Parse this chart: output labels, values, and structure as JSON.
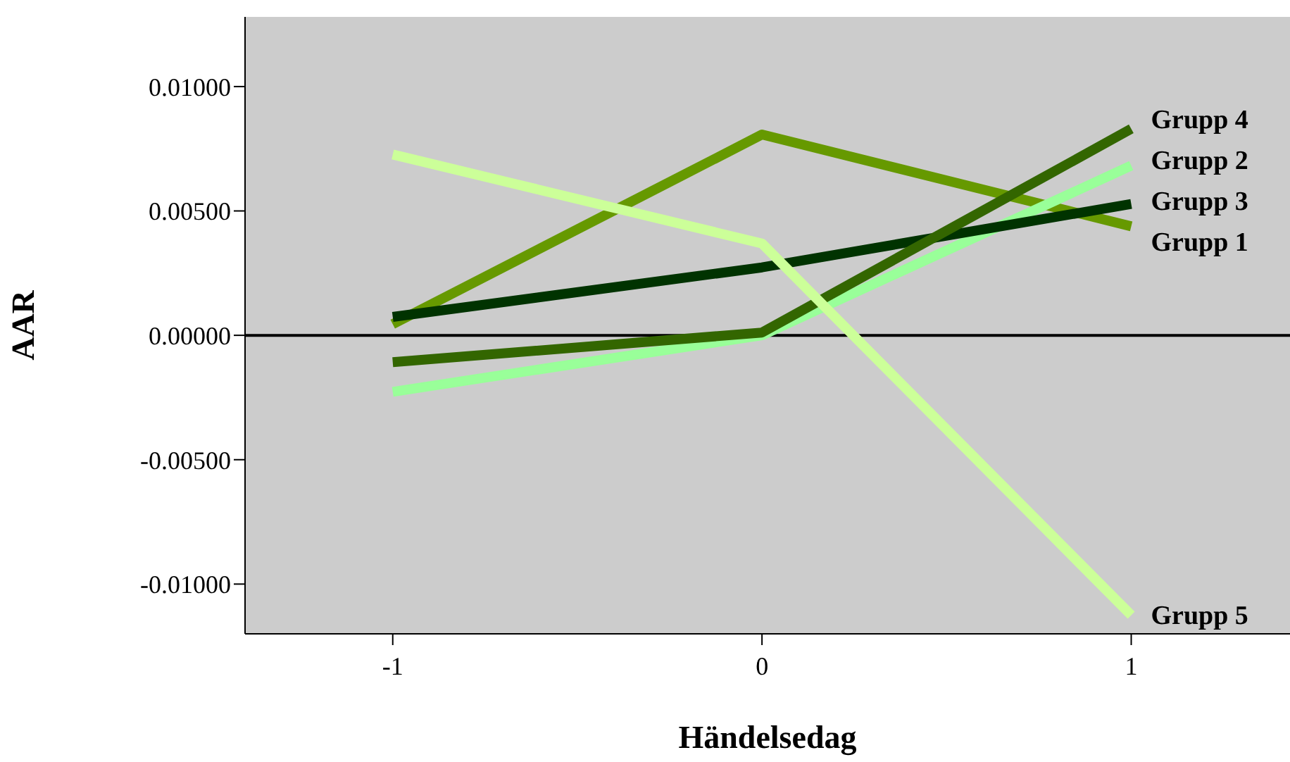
{
  "chart_data": {
    "type": "line",
    "xlabel": "Händelsedag",
    "ylabel": "AAR",
    "x": [
      -1,
      0,
      1
    ],
    "series": [
      {
        "name": "Grupp 1",
        "color": "#669900",
        "values": [
          0.00045,
          0.00807,
          0.00438
        ]
      },
      {
        "name": "Grupp 2",
        "color": "#99ff99",
        "values": [
          -0.00227,
          0.0,
          0.00682
        ]
      },
      {
        "name": "Grupp 3",
        "color": "#003300",
        "values": [
          0.00074,
          0.00273,
          0.00528
        ]
      },
      {
        "name": "Grupp 4",
        "color": "#336600",
        "values": [
          -0.00108,
          0.00011,
          0.0083
        ]
      },
      {
        "name": "Grupp 5",
        "color": "#ccff99",
        "values": [
          0.00727,
          0.00369,
          -0.01125
        ]
      }
    ],
    "xlim": [
      -1.4,
      1.43
    ],
    "xticks": [
      -1,
      0,
      1
    ],
    "ylim": [
      -0.012,
      0.0128
    ],
    "yticks": [
      {
        "value": -0.01,
        "label": "-0.01000"
      },
      {
        "value": -0.005,
        "label": "-0.00500"
      },
      {
        "value": 0,
        "label": "0.00000"
      },
      {
        "value": 0.005,
        "label": "0.00500"
      },
      {
        "value": 0.01,
        "label": "0.01000"
      }
    ],
    "ref_lines": [
      {
        "axis": "y",
        "value": 0,
        "color": "#000000"
      }
    ],
    "grid": false,
    "legend": false,
    "marker": "none",
    "line_style": "solid"
  }
}
